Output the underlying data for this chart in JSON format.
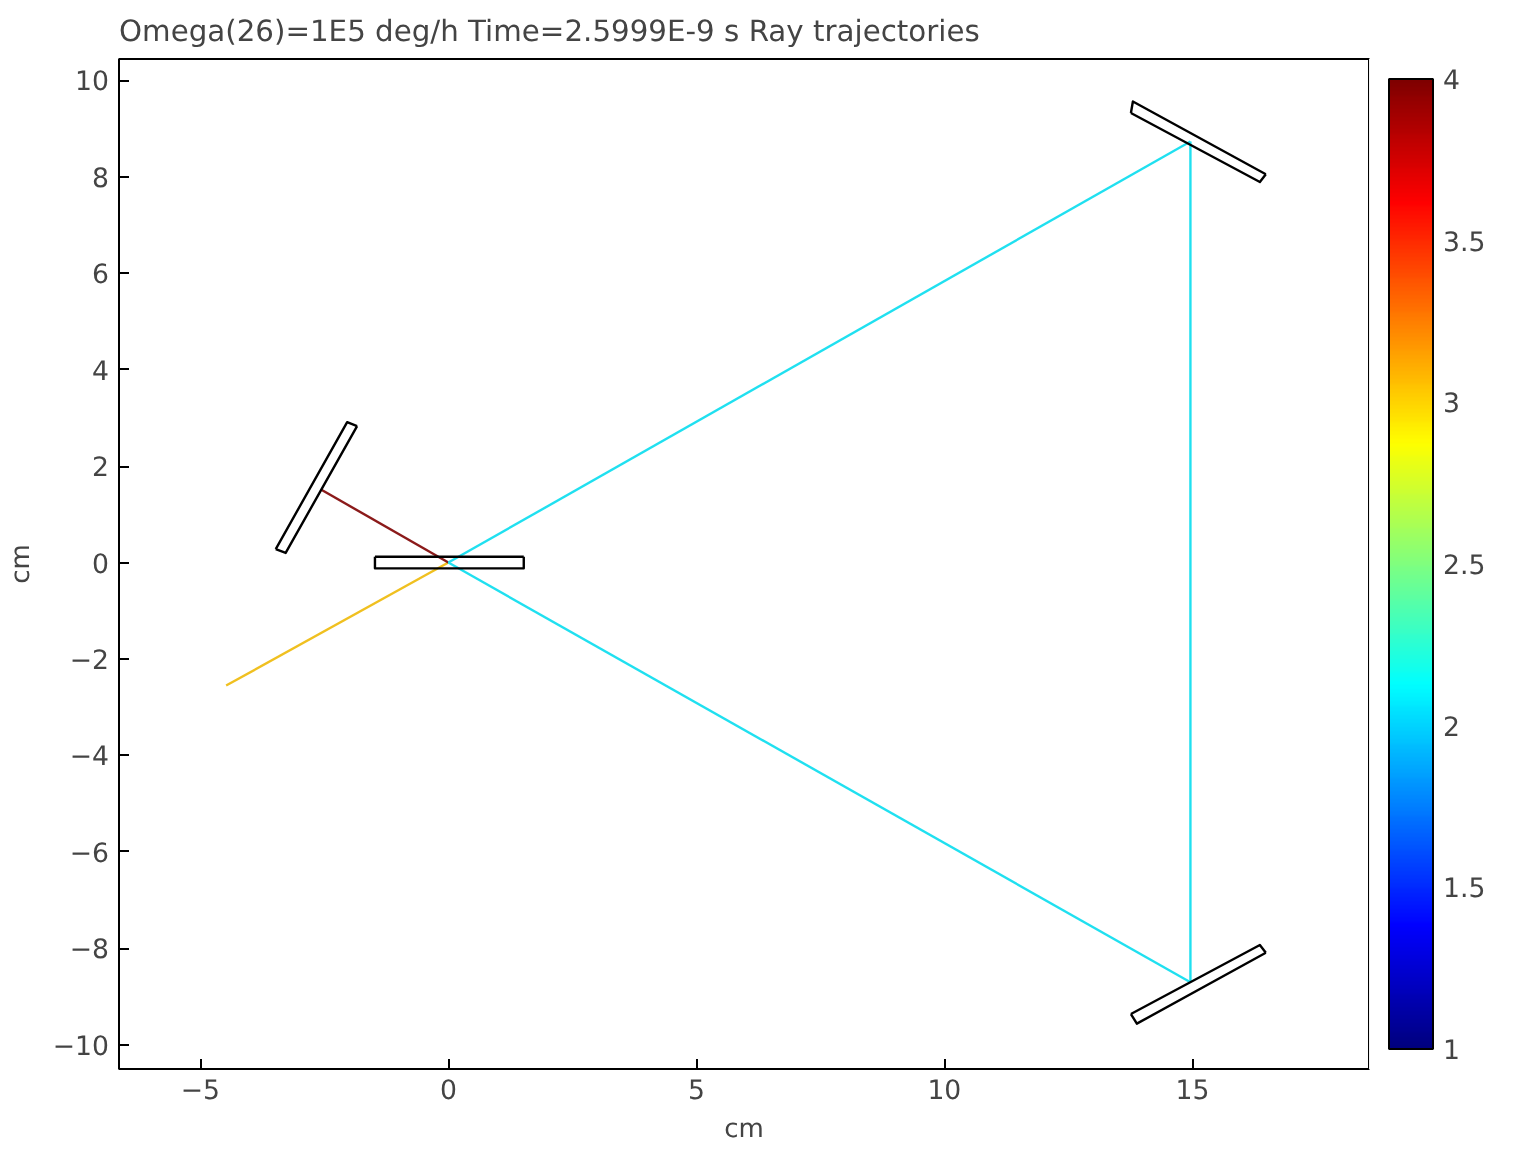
{
  "chart_data": {
    "type": "line",
    "title": "Omega(26)=1E5 deg/h Time=2.5999E-9 s",
    "subtitle": "Ray trajectories",
    "xlabel": "cm",
    "ylabel": "cm",
    "xlim": [
      -6.64,
      18.56
    ],
    "ylim": [
      -10.5,
      10.44
    ],
    "xticks": [
      -5,
      0,
      5,
      10,
      15
    ],
    "yticks": [
      -10,
      -8,
      -6,
      -4,
      -2,
      0,
      2,
      4,
      6,
      8,
      10
    ],
    "clim": [
      1,
      4
    ],
    "cticks": [
      1,
      1.5,
      2,
      2.5,
      3,
      3.5,
      4
    ],
    "grid": false,
    "series": [
      {
        "color": "#f0c020",
        "x": [
          -4.48,
          0
        ],
        "values": [
          -2.55,
          0
        ]
      },
      {
        "color": "#8b1a1a",
        "x": [
          0,
          -2.56
        ],
        "values": [
          0,
          1.51
        ]
      },
      {
        "color": "#20e0f0",
        "x": [
          0,
          14.96
        ],
        "values": [
          0,
          8.73
        ]
      },
      {
        "color": "#20e0f0",
        "x": [
          14.96,
          14.96
        ],
        "values": [
          8.73,
          -8.7
        ]
      },
      {
        "color": "#20e0f0",
        "x": [
          0,
          14.96
        ],
        "values": [
          0,
          -8.7
        ]
      },
      {
        "color": "#000000",
        "x": [
          -1.48,
          -1.48,
          1.52,
          1.52
        ],
        "values": [
          0.12,
          -0.12,
          -0.12,
          0.12
        ]
      },
      {
        "color": "#000000",
        "x": [
          -1.48,
          1.52
        ],
        "values": [
          0.12,
          0.12
        ]
      },
      {
        "color": "#000000",
        "x": [
          -3.48,
          -3.28,
          -1.84
        ],
        "values": [
          0.28,
          0.2,
          2.83
        ]
      },
      {
        "color": "#000000",
        "x": [
          -3.48,
          -2.04,
          -1.84
        ],
        "values": [
          0.28,
          2.91,
          2.83
        ]
      },
      {
        "color": "#000000",
        "x": [
          13.76,
          13.8,
          16.48
        ],
        "values": [
          9.32,
          9.56,
          8.05
        ]
      },
      {
        "color": "#000000",
        "x": [
          13.76,
          16.36,
          16.48
        ],
        "values": [
          9.32,
          7.89,
          8.05
        ]
      },
      {
        "color": "#000000",
        "x": [
          13.76,
          16.36,
          16.48
        ],
        "values": [
          -9.36,
          -7.93,
          -8.09
        ]
      },
      {
        "color": "#000000",
        "x": [
          13.76,
          13.88,
          16.48
        ],
        "values": [
          -9.36,
          -9.56,
          -8.09
        ]
      }
    ]
  }
}
